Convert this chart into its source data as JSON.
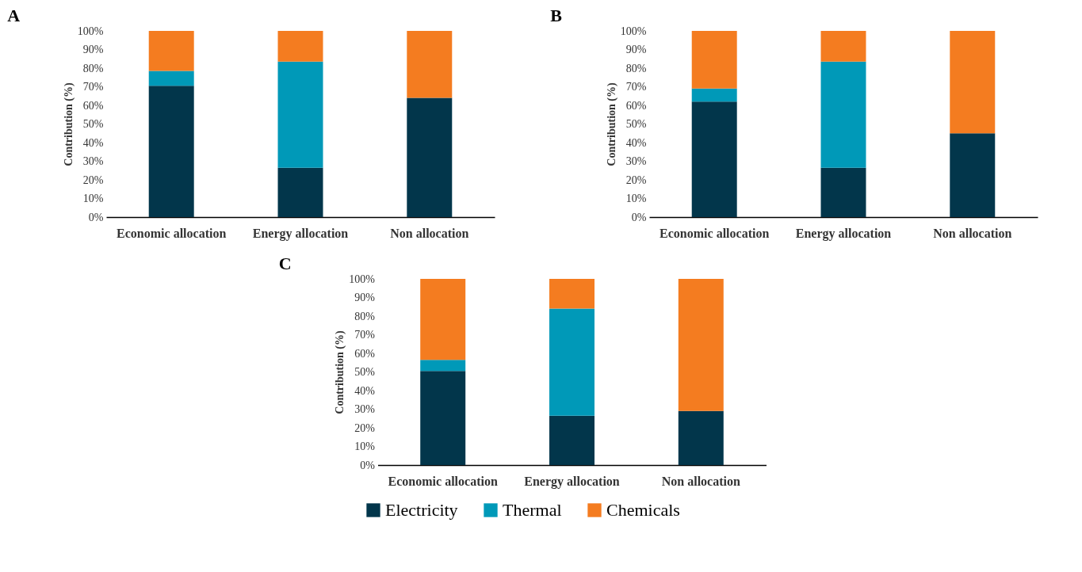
{
  "chart_data": [
    {
      "type": "bar",
      "title": "A",
      "ylabel": "Contribution (%)",
      "stacked": true,
      "categories": [
        "Economic allocation",
        "Energy allocation",
        "Non allocation"
      ],
      "ylim": [
        0,
        100
      ],
      "yticks": [
        {
          "value": 0,
          "label": "0%"
        },
        {
          "value": 10,
          "label": "10%"
        },
        {
          "value": 20,
          "label": "20%"
        },
        {
          "value": 30,
          "label": "30%"
        },
        {
          "value": 40,
          "label": "40%"
        },
        {
          "value": 50,
          "label": "50%"
        },
        {
          "value": 60,
          "label": "60%"
        },
        {
          "value": 70,
          "label": "70%"
        },
        {
          "value": 80,
          "label": "80%"
        },
        {
          "value": 90,
          "label": "90%"
        },
        {
          "value": 100,
          "label": "100%"
        }
      ],
      "grid": false,
      "legend": "bottom",
      "series": [
        {
          "name": "Electricity",
          "color": "#02364b",
          "values": [
            70.5,
            26.5,
            64
          ]
        },
        {
          "name": "Thermal",
          "color": "#0099b8",
          "values": [
            8,
            57,
            0
          ]
        },
        {
          "name": "Chemicals",
          "color": "#f47c20",
          "values": [
            21.5,
            16.5,
            36
          ]
        }
      ]
    },
    {
      "type": "bar",
      "title": "B",
      "ylabel": "Contribution (%)",
      "stacked": true,
      "categories": [
        "Economic allocation",
        "Energy allocation",
        "Non allocation"
      ],
      "ylim": [
        0,
        100
      ],
      "yticks": [
        {
          "value": 0,
          "label": "0%"
        },
        {
          "value": 10,
          "label": "10%"
        },
        {
          "value": 20,
          "label": "20%"
        },
        {
          "value": 30,
          "label": "30%"
        },
        {
          "value": 40,
          "label": "40%"
        },
        {
          "value": 50,
          "label": "50%"
        },
        {
          "value": 60,
          "label": "60%"
        },
        {
          "value": 70,
          "label": "70%"
        },
        {
          "value": 80,
          "label": "80%"
        },
        {
          "value": 90,
          "label": "90%"
        },
        {
          "value": 100,
          "label": "100%"
        }
      ],
      "grid": false,
      "legend": "bottom",
      "series": [
        {
          "name": "Electricity",
          "color": "#02364b",
          "values": [
            62,
            26.5,
            45
          ]
        },
        {
          "name": "Thermal",
          "color": "#0099b8",
          "values": [
            7,
            57,
            0
          ]
        },
        {
          "name": "Chemicals",
          "color": "#f47c20",
          "values": [
            31,
            16.5,
            55
          ]
        }
      ]
    },
    {
      "type": "bar",
      "title": "C",
      "ylabel": "Contribution (%)",
      "stacked": true,
      "categories": [
        "Economic allocation",
        "Energy allocation",
        "Non allocation"
      ],
      "ylim": [
        0,
        100
      ],
      "yticks": [
        {
          "value": 0,
          "label": "0%"
        },
        {
          "value": 10,
          "label": "10%"
        },
        {
          "value": 20,
          "label": "20%"
        },
        {
          "value": 30,
          "label": "30%"
        },
        {
          "value": 40,
          "label": "40%"
        },
        {
          "value": 50,
          "label": "50%"
        },
        {
          "value": 60,
          "label": "60%"
        },
        {
          "value": 70,
          "label": "70%"
        },
        {
          "value": 80,
          "label": "80%"
        },
        {
          "value": 90,
          "label": "90%"
        },
        {
          "value": 100,
          "label": "100%"
        }
      ],
      "grid": false,
      "legend": "bottom",
      "series": [
        {
          "name": "Electricity",
          "color": "#02364b",
          "values": [
            50.5,
            26.5,
            29
          ]
        },
        {
          "name": "Thermal",
          "color": "#0099b8",
          "values": [
            6,
            57.5,
            0
          ]
        },
        {
          "name": "Chemicals",
          "color": "#f47c20",
          "values": [
            43.5,
            16,
            71
          ]
        }
      ]
    }
  ]
}
